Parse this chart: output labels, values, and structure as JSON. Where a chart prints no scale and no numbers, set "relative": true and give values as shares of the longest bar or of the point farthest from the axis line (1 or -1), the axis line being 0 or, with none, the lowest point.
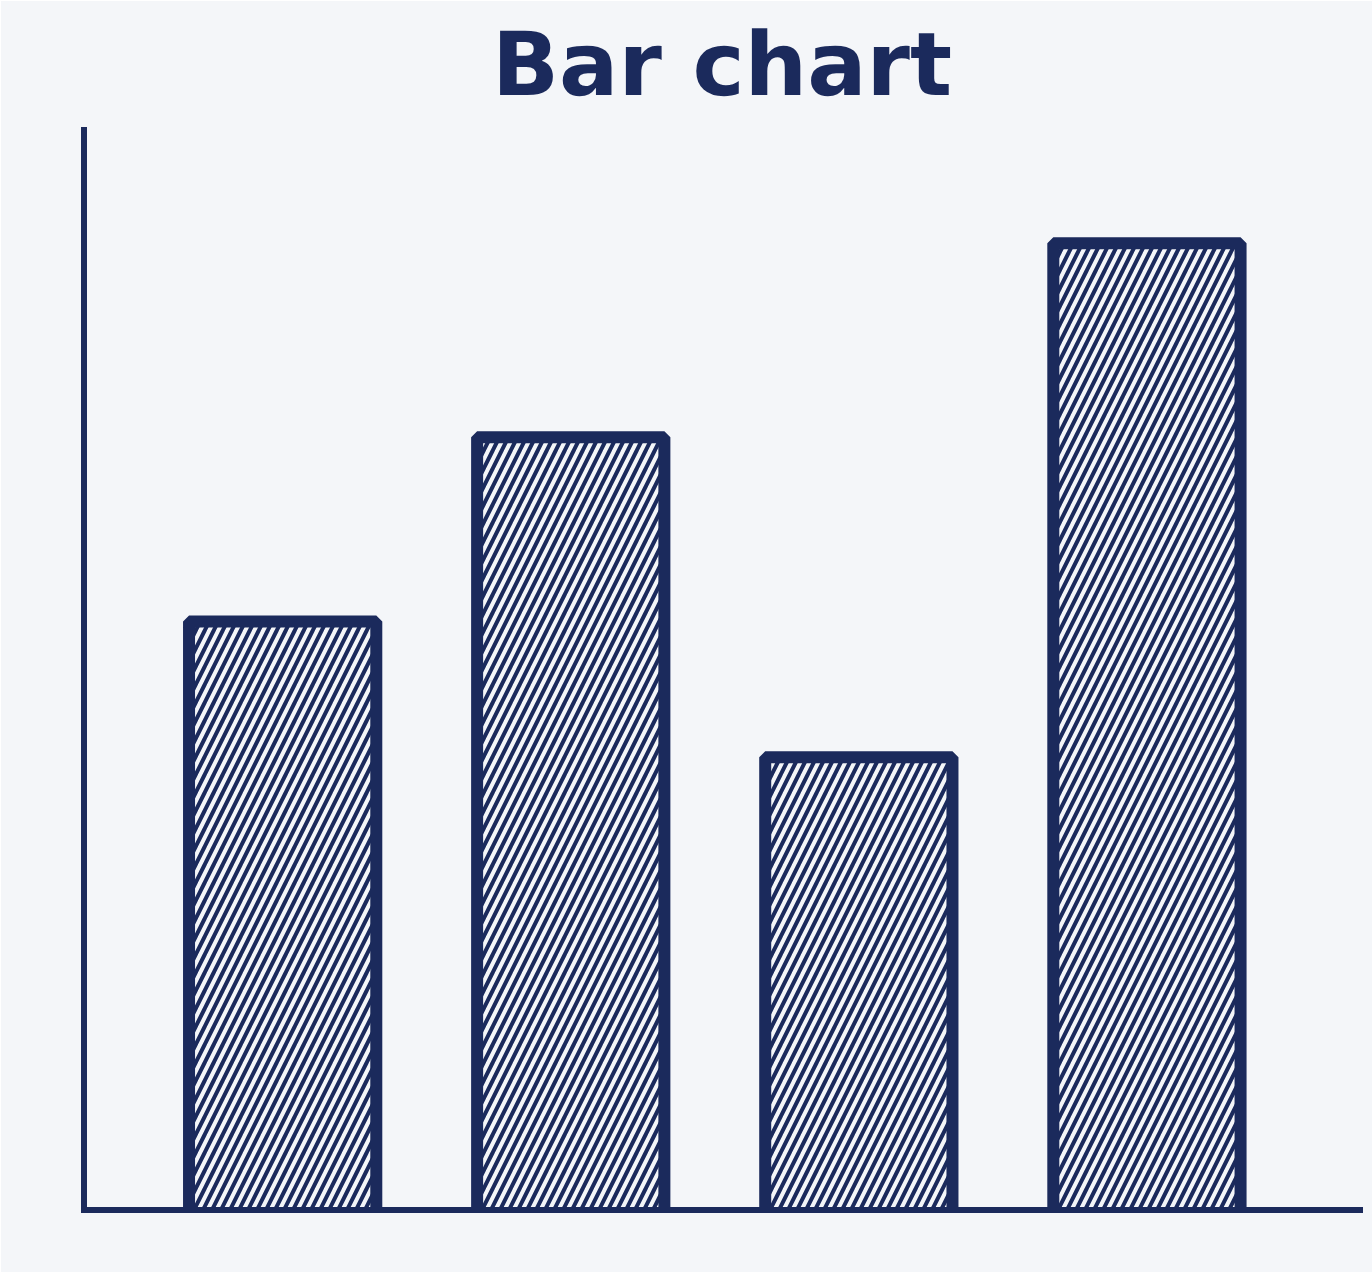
{
  "chart_data": {
    "type": "bar",
    "title": "Bar chart",
    "relative": true,
    "categories": [
      null,
      null,
      null,
      null
    ],
    "values": [
      0.61,
      0.8,
      0.47,
      1
    ],
    "color": "#1b2a5c"
  }
}
